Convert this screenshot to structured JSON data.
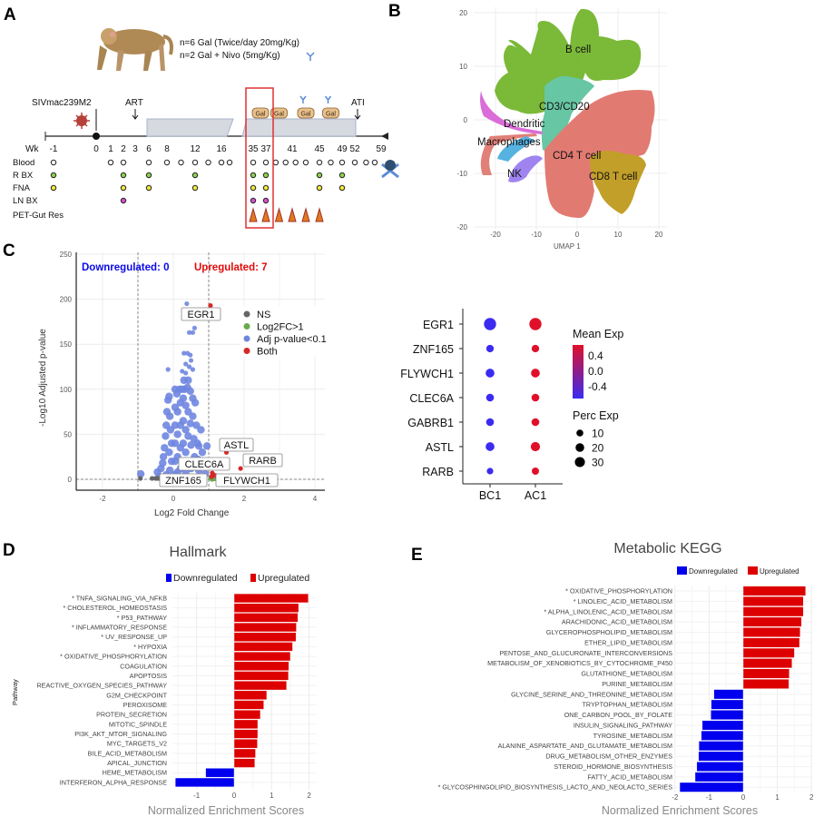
{
  "panel_labels": {
    "a": "A",
    "b": "B",
    "c": "C",
    "d": "D",
    "e": "E"
  },
  "panel_a": {
    "treatment_line1": "n=6 Gal (Twice/day 20mg/Kg)",
    "treatment_line2": "n=2 Gal + Nivo (5mg/Kg)",
    "event_infection": "SIVmac239M2",
    "event_art": "ART",
    "event_ati": "ATI",
    "drug_pill": "Gal",
    "gal_weeks": [
      35,
      39,
      43,
      47
    ],
    "nivo_weeks": [
      43,
      47
    ],
    "week_axis_label": "Wk",
    "week_ticks": [
      "-1",
      "0",
      "1",
      "2",
      "3",
      "6",
      "8",
      "12",
      "16",
      "35",
      "37",
      "41",
      "45",
      "49",
      "52",
      "59"
    ],
    "rows": [
      {
        "label": "Blood",
        "color": "#ffffff",
        "weeks": [
          -1,
          1,
          2,
          6,
          8,
          10,
          12,
          14,
          16,
          18,
          35,
          37,
          38.5,
          40,
          41.5,
          43,
          45,
          47,
          49,
          52,
          55,
          57.3
        ]
      },
      {
        "label": "R BX",
        "color": "#8fd14f",
        "weeks": [
          -1,
          2,
          6,
          12,
          35,
          37,
          45,
          49
        ]
      },
      {
        "label": "FNA",
        "color": "#f2ea3a",
        "weeks": [
          -1,
          2,
          6,
          12,
          35,
          37,
          45,
          49
        ]
      },
      {
        "label": "LN BX",
        "color": "#d94fd1",
        "weeks": [
          2,
          35,
          37
        ]
      },
      {
        "label": "PET-Gut Res",
        "color": "#e07a1f",
        "weeks": [
          35,
          37,
          39,
          41,
          43,
          45
        ]
      }
    ],
    "highlight_color": "#e03030"
  },
  "panel_b": {
    "chart_data": {
      "type": "scatter",
      "xlabel": "UMAP 1",
      "xticks": [
        "-20",
        "-10",
        "0",
        "10",
        "20"
      ],
      "yticks": [
        "20",
        "10",
        "0",
        "-10",
        "-20"
      ],
      "xlim": [
        -25,
        21
      ],
      "ylim": [
        -21,
        21
      ],
      "clusters": [
        {
          "name": "B cell",
          "color": "#74b62e"
        },
        {
          "name": "CD3/CD20",
          "color": "#5fc4a0"
        },
        {
          "name": "Dendritic",
          "color": "#d966d6"
        },
        {
          "name": "Macrophages",
          "color": "#e07a70"
        },
        {
          "name": "CD4 T cell",
          "color": "#e0746b"
        },
        {
          "name": "CD8 T cell",
          "color": "#bf9a1e"
        },
        {
          "name": "NK",
          "color": "#9a7ef0"
        }
      ],
      "macrophage_color": "#4eaee0"
    }
  },
  "panel_c": {
    "chart_data": {
      "type": "scatter",
      "title_down": "Downregulated: 0",
      "title_up": "Upregulated: 7",
      "xlabel": "Log2 Fold Change",
      "ylabel": "-Log10 Adjusted p-value",
      "xlim": [
        -2.7,
        4.3
      ],
      "ylim": [
        -10,
        250
      ],
      "xticks": [
        -2,
        0,
        2,
        4
      ],
      "yticks": [
        0,
        50,
        100,
        150,
        200,
        250
      ],
      "fc_cutoffs": [
        -1,
        1
      ],
      "p_cutoff_line": 0,
      "legend": [
        {
          "label": "NS",
          "color": "#666666"
        },
        {
          "label": "Log2FC>1",
          "color": "#6aa84f"
        },
        {
          "label": "Adj p-value<0.1",
          "color": "#6f86e0"
        },
        {
          "label": "Both",
          "color": "#d62728"
        }
      ],
      "ns_points": [
        [
          -0.93,
          1
        ],
        [
          -0.6,
          1
        ],
        [
          -0.5,
          1
        ],
        [
          -0.45,
          1
        ],
        [
          -0.4,
          1
        ],
        [
          -0.35,
          1
        ],
        [
          -0.3,
          1.5
        ]
      ],
      "fc_points": [
        [
          1.05,
          1
        ],
        [
          1.12,
          2
        ],
        [
          1.18,
          0.5
        ],
        [
          1.1,
          0
        ]
      ],
      "sig_points": [
        [
          -0.92,
          6
        ],
        [
          -0.45,
          8
        ],
        [
          -0.4,
          3
        ],
        [
          -0.35,
          12
        ],
        [
          -0.3,
          18
        ],
        [
          -0.28,
          25
        ],
        [
          -0.25,
          35
        ],
        [
          -0.22,
          48
        ],
        [
          -0.2,
          60
        ],
        [
          -0.18,
          75
        ],
        [
          -0.15,
          88
        ],
        [
          -0.12,
          92
        ],
        [
          -0.1,
          70
        ],
        [
          -0.08,
          55
        ],
        [
          -0.05,
          40
        ],
        [
          -0.05,
          20
        ],
        [
          -0.1,
          10
        ],
        [
          -0.2,
          5
        ],
        [
          -0.12,
          30
        ],
        [
          -0.15,
          122
        ],
        [
          0.05,
          100
        ],
        [
          0.05,
          80
        ],
        [
          0.05,
          60
        ],
        [
          0.05,
          40
        ],
        [
          0.05,
          20
        ],
        [
          0.05,
          5
        ],
        [
          0.1,
          95
        ],
        [
          0.12,
          75
        ],
        [
          0.12,
          50
        ],
        [
          0.12,
          25
        ],
        [
          0.12,
          8
        ],
        [
          0.18,
          100
        ],
        [
          0.2,
          85
        ],
        [
          0.2,
          60
        ],
        [
          0.2,
          35
        ],
        [
          0.2,
          12
        ],
        [
          0.25,
          100
        ],
        [
          0.28,
          90
        ],
        [
          0.28,
          65
        ],
        [
          0.28,
          40
        ],
        [
          0.28,
          18
        ],
        [
          0.32,
          100
        ],
        [
          0.35,
          82
        ],
        [
          0.35,
          55
        ],
        [
          0.35,
          30
        ],
        [
          0.35,
          8
        ],
        [
          0.4,
          102
        ],
        [
          0.42,
          75
        ],
        [
          0.42,
          48
        ],
        [
          0.42,
          20
        ],
        [
          0.48,
          98
        ],
        [
          0.48,
          62
        ],
        [
          0.5,
          38
        ],
        [
          0.5,
          12
        ],
        [
          0.55,
          90
        ],
        [
          0.55,
          70
        ],
        [
          0.58,
          45
        ],
        [
          0.6,
          25
        ],
        [
          0.62,
          85
        ],
        [
          0.65,
          60
        ],
        [
          0.68,
          40
        ],
        [
          0.7,
          22
        ],
        [
          0.72,
          10
        ],
        [
          0.78,
          55
        ],
        [
          0.82,
          30
        ],
        [
          0.85,
          15
        ],
        [
          0.9,
          6
        ],
        [
          0.95,
          37
        ],
        [
          0.72,
          37
        ],
        [
          0.25,
          120
        ],
        [
          0.3,
          110
        ],
        [
          0.35,
          118
        ],
        [
          0.45,
          125
        ],
        [
          0.5,
          132
        ],
        [
          0.55,
          122
        ],
        [
          0.3,
          140
        ],
        [
          0.4,
          140
        ],
        [
          0.48,
          138
        ],
        [
          0.45,
          163
        ],
        [
          0.55,
          163
        ],
        [
          0.6,
          168
        ],
        [
          0.38,
          195
        ],
        [
          0.35,
          128
        ],
        [
          0.42,
          110
        ]
      ],
      "genes": [
        {
          "name": "EGR1",
          "log2fc": 1.05,
          "neglog10p": 193
        },
        {
          "name": "ASTL",
          "log2fc": 1.5,
          "neglog10p": 30
        },
        {
          "name": "RARB",
          "log2fc": 1.9,
          "neglog10p": 12
        },
        {
          "name": "CLEC6A",
          "log2fc": 1.1,
          "neglog10p": 7
        },
        {
          "name": "FLYWCH1",
          "log2fc": 1.2,
          "neglog10p": 4
        },
        {
          "name": "ZNF165",
          "log2fc": 1.08,
          "neglog10p": 3
        },
        {
          "name": "GABRB1",
          "log2fc": 1.14,
          "neglog10p": 5
        }
      ],
      "labeled_genes": [
        "EGR1",
        "ASTL",
        "RARB",
        "CLEC6A",
        "ZNF165",
        "FLYWCH1"
      ]
    }
  },
  "panel_dot": {
    "chart_data": {
      "type": "dot",
      "genes": [
        "EGR1",
        "ZNF165",
        "FLYWCH1",
        "CLEC6A",
        "GABRB1",
        "ASTL",
        "RARB"
      ],
      "groups": [
        "BC1",
        "AC1"
      ],
      "mean_exp": [
        [
          -0.5,
          0.5
        ],
        [
          -0.5,
          0.5
        ],
        [
          -0.5,
          0.5
        ],
        [
          -0.5,
          0.5
        ],
        [
          -0.5,
          0.5
        ],
        [
          -0.5,
          0.5
        ],
        [
          -0.5,
          0.5
        ]
      ],
      "perc_exp": [
        [
          32,
          32
        ],
        [
          8,
          8
        ],
        [
          13,
          13
        ],
        [
          9,
          9
        ],
        [
          9,
          9
        ],
        [
          13,
          15
        ],
        [
          5,
          7
        ]
      ],
      "color_legend_title": "Mean Exp",
      "color_ticks": [
        "0.4",
        "0.0",
        "-0.4"
      ],
      "color_low": "#3b2bf0",
      "color_high": "#e0102a",
      "size_legend_title": "Perc Exp",
      "size_ticks": [
        10,
        20,
        30
      ]
    }
  },
  "panel_d": {
    "chart_data": {
      "type": "bar",
      "orientation": "horizontal",
      "title": "Hallmark",
      "xlabel": "Normalized Enrichment Scores",
      "ylabel": "Pathway",
      "legend": [
        {
          "label": "Downregulated",
          "color": "#0000ee"
        },
        {
          "label": "Upregulated",
          "color": "#dd0000"
        }
      ],
      "xlim": [
        -1.65,
        2.2
      ],
      "xticks": [
        -1,
        0,
        1,
        2
      ],
      "categories": [
        "* TNFA_SIGNALING_VIA_NFKB",
        "* CHOLESTEROL_HOMEOSTASIS",
        "* P53_PATHWAY",
        "* INFLAMMATORY_RESPONSE",
        "* UV_RESPONSE_UP",
        "* HYPOXIA",
        "* OXIDATIVE_PHOSPHORYLATION",
        "COAGULATION",
        "APOPTOSIS",
        "REACTIVE_OXYGEN_SPECIES_PATHWAY",
        "G2M_CHECKPOINT",
        "PEROXISOME",
        "PROTEIN_SECRETION",
        "MITOTIC_SPINDLE",
        "PI3K_AKT_MTOR_SIGNALING",
        "MYC_TARGETS_V2",
        "BILE_ACID_METABOLISM",
        "APICAL_JUNCTION",
        "HEME_METABOLISM",
        "INTERFERON_ALPHA_RESPONSE"
      ],
      "values": [
        1.98,
        1.72,
        1.7,
        1.66,
        1.65,
        1.56,
        1.5,
        1.46,
        1.45,
        1.4,
        0.87,
        0.79,
        0.7,
        0.63,
        0.63,
        0.62,
        0.57,
        0.55,
        -0.76,
        -1.57
      ]
    }
  },
  "panel_e": {
    "chart_data": {
      "type": "bar",
      "orientation": "horizontal",
      "title": "Metabolic KEGG",
      "xlabel": "Normalized Enrichment Scores",
      "legend": [
        {
          "label": "Downregulated",
          "color": "#0000ee"
        },
        {
          "label": "Upregulated",
          "color": "#dd0000"
        }
      ],
      "xlim": [
        -2,
        2
      ],
      "xticks": [
        -2,
        -1,
        0,
        1,
        2
      ],
      "categories": [
        "* OXIDATIVE_PHOSPHORYLATION",
        "* LINOLEIC_ACID_METABOLISM",
        "* ALPHA_LINOLENIC_ACID_METABOLISM",
        "ARACHIDONIC_ACID_METABOLISM",
        "GLYCEROPHOSPHOLIPID_METABOLISM",
        "ETHER_LIPID_METABOLISM",
        "PENTOSE_AND_GLUCURONATE_INTERCONVERSIONS",
        "METABOLISM_OF_XENOBIOTICS_BY_CYTOCHROME_P450",
        "GLUTATHIONE_METABOLISM",
        "PURINE_METABOLISM",
        "GLYCINE_SERINE_AND_THREONINE_METABOLISM",
        "TRYPTOPHAN_METABOLISM",
        "ONE_CARBON_POOL_BY_FOLATE",
        "INSULIN_SIGNALING_PATHWAY",
        "TYROSINE_METABOLISM",
        "ALANINE_ASPARTATE_AND_GLUTAMATE_METABOLISM",
        "DRUG_METABOLISM_OTHER_ENZYMES",
        "STEROID_HORMONE_BIOSYNTHESIS",
        "FATTY_ACID_METABOLISM",
        "* GLYCOSPHINGOLIPID_BIOSYNTHESIS_LACTO_AND_NEOLACTO_SERIES"
      ],
      "values": [
        1.83,
        1.76,
        1.76,
        1.71,
        1.67,
        1.65,
        1.5,
        1.43,
        1.35,
        1.34,
        -0.86,
        -0.94,
        -0.95,
        -1.2,
        -1.23,
        -1.3,
        -1.31,
        -1.36,
        -1.41,
        -1.86
      ]
    }
  }
}
